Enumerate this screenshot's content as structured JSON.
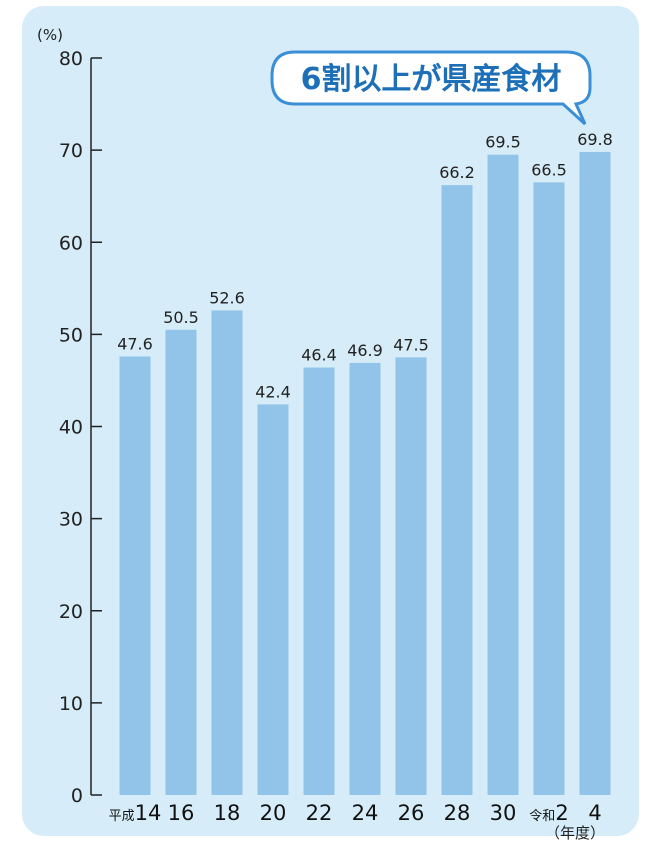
{
  "chart_data": {
    "type": "bar",
    "categories": [
      "14",
      "16",
      "18",
      "20",
      "22",
      "24",
      "26",
      "28",
      "30",
      "2",
      "4"
    ],
    "category_prefixes": [
      "平成",
      "",
      "",
      "",
      "",
      "",
      "",
      "",
      "",
      "令和",
      ""
    ],
    "values": [
      47.6,
      50.5,
      52.6,
      42.4,
      46.4,
      46.9,
      47.5,
      66.2,
      69.5,
      66.5,
      69.8
    ],
    "data_labels": [
      "47.6",
      "50.5",
      "52.6",
      "42.4",
      "46.4",
      "46.9",
      "47.5",
      "66.2",
      "69.5",
      "66.5",
      "69.8"
    ],
    "y_unit": "(%)",
    "x_unit": "（年度）",
    "ylim": [
      0,
      80
    ],
    "y_ticks": [
      0,
      10,
      20,
      30,
      40,
      50,
      60,
      70,
      80
    ],
    "annotation": "6割以上が県産食材",
    "grid": false,
    "colors": {
      "bar": "#92c4e9",
      "background": "#d6ecf8",
      "callout_border": "#3a8fd6",
      "callout_text": "#1d6fb8"
    }
  }
}
